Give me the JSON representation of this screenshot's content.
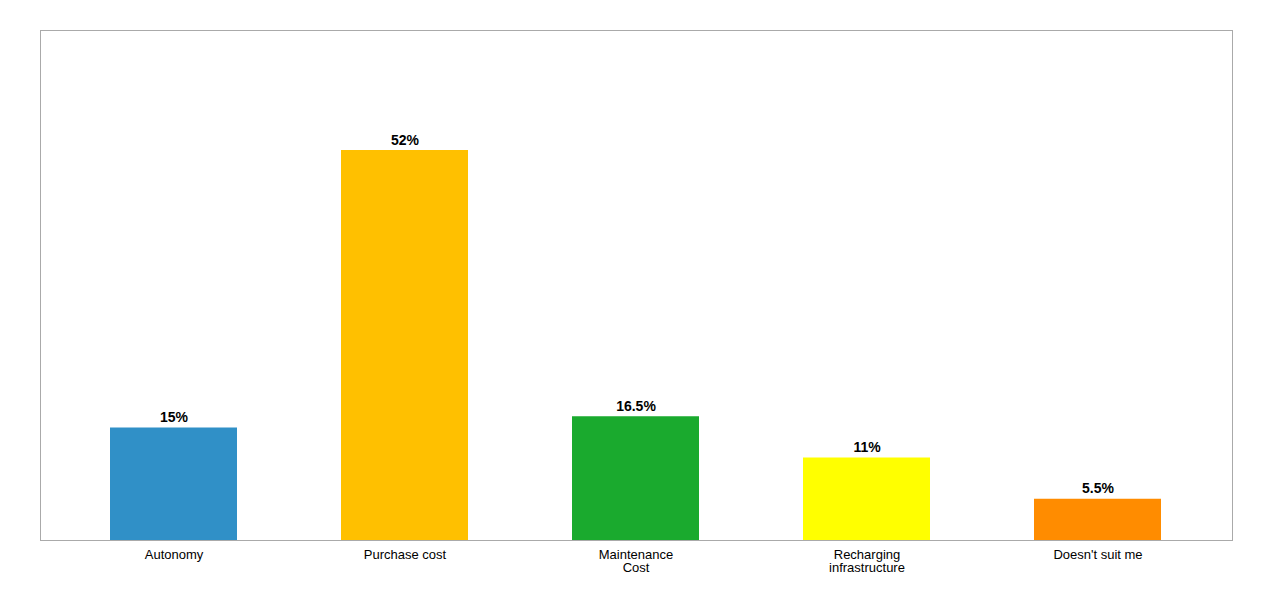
{
  "chart_data": {
    "type": "bar",
    "categories": [
      "Autonomy",
      "Purchase cost",
      "Maintenance\nCost",
      "Recharging\ninfrastructure",
      "Doesn't suit me"
    ],
    "values": [
      15,
      52,
      16.5,
      11,
      5.5
    ],
    "value_labels": [
      "15%",
      "52%",
      "16.5%",
      "11%",
      "5.5%"
    ],
    "colors": [
      "#3090c7",
      "#ffc000",
      "#1aaa2e",
      "#ffff00",
      "#ff8c00"
    ],
    "ylim": [
      0,
      68
    ],
    "data_labels": true,
    "tick_labels": "x",
    "grid": false
  }
}
